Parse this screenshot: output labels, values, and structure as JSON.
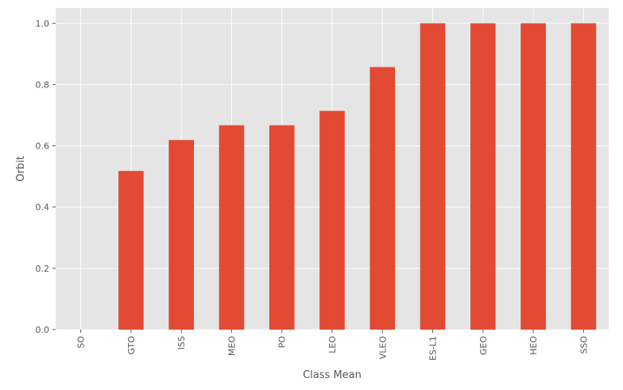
{
  "chart_data": {
    "type": "bar",
    "categories": [
      "SO",
      "GTO",
      "ISS",
      "MEO",
      "PO",
      "LEO",
      "VLEO",
      "ES-L1",
      "GEO",
      "HEO",
      "SSO"
    ],
    "values": [
      0.0,
      0.518,
      0.619,
      0.667,
      0.667,
      0.714,
      0.857,
      1.0,
      1.0,
      1.0,
      1.0
    ],
    "xlabel": "Class Mean",
    "ylabel": "Orbit",
    "ylim": [
      0,
      1.05
    ],
    "yticks": [
      "0.0",
      "0.2",
      "0.4",
      "0.6",
      "0.8",
      "1.0"
    ],
    "grid": true,
    "legend": "none",
    "colors": {
      "bar": "#E24A33",
      "background": "#E5E5E5",
      "grid": "#FFFFFF",
      "text": "#555555"
    }
  }
}
